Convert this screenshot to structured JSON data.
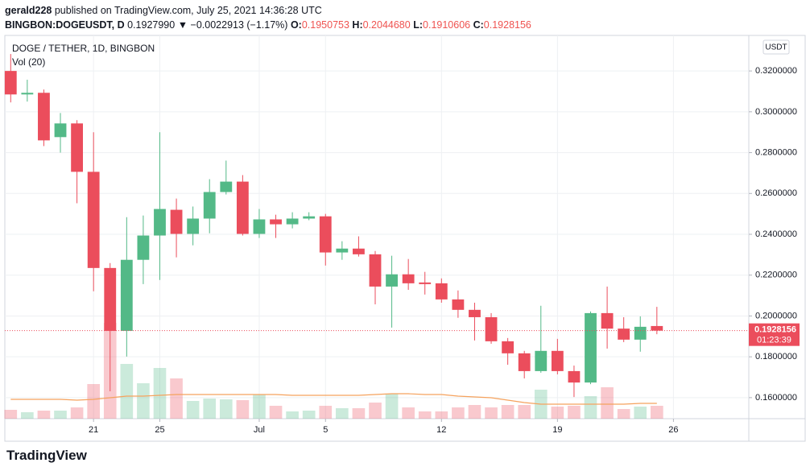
{
  "header": {
    "user": "gerald228",
    "published": "published on TradingView.com, July 25, 2021 14:36:28 UTC",
    "symbol": "BINGBON:DOGEUSDT, D",
    "last": "0.1927990",
    "change": "▼ −0.0022913 (−1.17%)",
    "o_label": "O:",
    "o_value": "0.1950753",
    "h_label": "H:",
    "h_value": "0.2044680",
    "l_label": "L:",
    "l_value": "0.1910606",
    "c_label": "C:",
    "c_value": "0.1928156"
  },
  "chart_data": {
    "type": "candlestick",
    "title": "DOGE / TETHER, 1D, BINGBON",
    "volume_title": "Vol (20)",
    "currency": "USDT",
    "categories": [
      null,
      null,
      null,
      null,
      null,
      "21",
      null,
      null,
      null,
      "25",
      null,
      null,
      null,
      null,
      null,
      "Jul",
      null,
      null,
      null,
      "5",
      null,
      null,
      null,
      null,
      null,
      null,
      "12",
      null,
      null,
      null,
      null,
      null,
      null,
      "19",
      null,
      null,
      null,
      null,
      null,
      null,
      "26",
      null,
      null,
      null,
      null
    ],
    "open": [
      0.32,
      0.3085,
      0.3093,
      0.2876,
      0.2943,
      0.2706,
      0.2235,
      0.1927,
      0.2275,
      0.2394,
      0.252,
      0.2402,
      0.2477,
      0.2607,
      0.2658,
      0.2402,
      0.2473,
      0.2449,
      0.2477,
      0.2488,
      0.2311,
      0.233,
      0.2302,
      0.2144,
      0.2204,
      0.2164,
      0.216,
      0.2081,
      0.203,
      0.1994,
      0.1876,
      0.1817,
      0.173,
      0.1829,
      0.173,
      0.1674,
      0.2014,
      0.1938,
      0.1884,
      0.1950753,
      null,
      null,
      null,
      null,
      null
    ],
    "high": [
      0.3283,
      0.3157,
      0.3109,
      0.2994,
      0.2959,
      0.29,
      0.2259,
      0.2484,
      0.2492,
      0.29,
      0.2575,
      0.2536,
      0.267,
      0.2761,
      0.269,
      0.2524,
      0.2496,
      0.2508,
      0.2508,
      0.25,
      0.2366,
      0.239,
      0.2318,
      0.2295,
      0.2279,
      0.2216,
      0.2184,
      0.2125,
      0.2065,
      0.2014,
      0.1892,
      0.1829,
      0.205,
      0.1888,
      0.1757,
      0.2022,
      0.2144,
      0.1994,
      0.1998,
      0.204468,
      null,
      null,
      null,
      null,
      null
    ],
    "low": [
      0.3046,
      0.305,
      0.2832,
      0.28,
      0.2552,
      0.2121,
      0.1631,
      0.1801,
      0.2156,
      0.2176,
      0.2287,
      0.2346,
      0.2405,
      0.2595,
      0.2394,
      0.2382,
      0.2382,
      0.2429,
      0.2469,
      0.2247,
      0.2275,
      0.2291,
      0.2057,
      0.1943,
      0.2128,
      0.2105,
      0.2065,
      0.1991,
      0.188,
      0.1864,
      0.1761,
      0.1694,
      0.1722,
      0.1714,
      0.1603,
      0.1666,
      0.184,
      0.1872,
      0.1825,
      0.1910606,
      null,
      null,
      null,
      null,
      null
    ],
    "close": [
      0.3085,
      0.3093,
      0.286,
      0.2943,
      0.2706,
      0.2235,
      0.1927,
      0.2275,
      0.2394,
      0.2524,
      0.2402,
      0.2477,
      0.2607,
      0.2658,
      0.2402,
      0.2473,
      0.2449,
      0.2477,
      0.2488,
      0.2311,
      0.233,
      0.2302,
      0.2144,
      0.2204,
      0.216,
      0.2156,
      0.2081,
      0.203,
      0.1994,
      0.1876,
      0.1817,
      0.173,
      0.1829,
      0.173,
      0.1674,
      0.2014,
      0.1938,
      0.1884,
      0.1947,
      0.1928156,
      null,
      null,
      null,
      null,
      null
    ],
    "volume": [
      11,
      8,
      10,
      10,
      14,
      43,
      119,
      68,
      44,
      63,
      50,
      22,
      25,
      24,
      23,
      30,
      16,
      9,
      10,
      16,
      13,
      13,
      20,
      31,
      14,
      9,
      9,
      14,
      17,
      14,
      17,
      17,
      36,
      15,
      16,
      28,
      39,
      12,
      15,
      16,
      null,
      null,
      null,
      null,
      null
    ],
    "volume_ma": [
      24,
      24,
      24,
      24,
      23,
      24,
      26,
      28,
      28,
      29,
      30,
      30,
      30,
      30,
      30,
      30,
      30,
      29,
      29,
      29,
      29,
      29,
      30,
      31,
      31,
      30,
      30,
      28,
      27,
      26,
      23,
      20,
      18,
      18,
      18,
      18,
      18,
      18,
      19,
      19,
      null,
      null,
      null,
      null,
      null
    ],
    "ylim": [
      0.1497,
      0.3374
    ],
    "yticks": [
      {
        "value": 0.16,
        "label": "0.1600000"
      },
      {
        "value": 0.18,
        "label": "0.1800000"
      },
      {
        "value": 0.2,
        "label": "0.2000000"
      },
      {
        "value": 0.22,
        "label": "0.2200000"
      },
      {
        "value": 0.24,
        "label": "0.2400000"
      },
      {
        "value": 0.26,
        "label": "0.2600000"
      },
      {
        "value": 0.28,
        "label": "0.2800000"
      },
      {
        "value": 0.3,
        "label": "0.3000000"
      },
      {
        "value": 0.32,
        "label": "0.3200000"
      }
    ],
    "last_price_label": "0.1928156",
    "countdown": "01:23:39",
    "up_color": "#53b987",
    "down_color": "#eb4d5c",
    "grid": true
  },
  "footer": "TradingView"
}
